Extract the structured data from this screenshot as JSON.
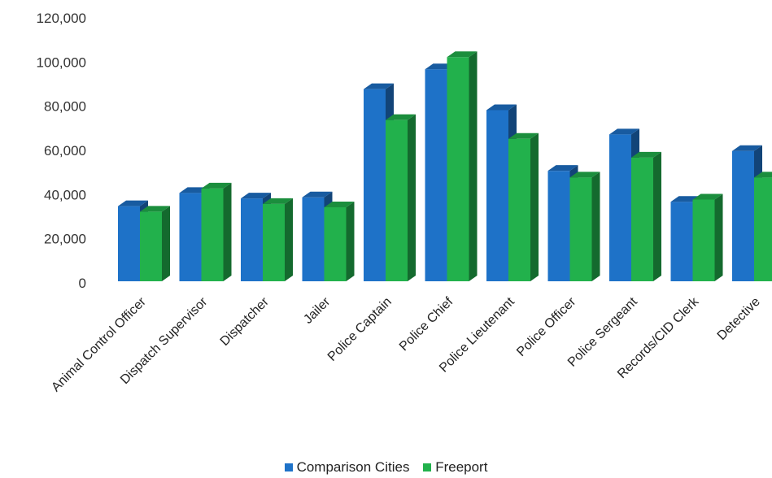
{
  "chart_data": {
    "type": "bar",
    "title": "",
    "xlabel": "",
    "ylabel": "",
    "ylim": [
      0,
      120000
    ],
    "yticks": [
      0,
      20000,
      40000,
      60000,
      80000,
      100000,
      120000
    ],
    "ytick_labels": [
      "0",
      "20,000",
      "40,000",
      "60,000",
      "80,000",
      "100,000",
      "120,000"
    ],
    "grid": false,
    "style": "3d-clustered-column",
    "legend_position": "bottom",
    "categories": [
      "Animal Control Officer",
      "Dispatch Supervisor",
      "Dispatcher",
      "Jailer",
      "Police Captain",
      "Police Chief",
      "Police Lieutenant",
      "Police Officer",
      "Police Sergeant",
      "Records/CID Clerk",
      "Detective"
    ],
    "series": [
      {
        "name": "Comparison Cities",
        "color": "#1e72c8",
        "values": [
          34000,
          40000,
          37500,
          38000,
          87000,
          96000,
          77500,
          50000,
          66500,
          36000,
          59000
        ]
      },
      {
        "name": "Freeport",
        "color": "#22b14c",
        "values": [
          31500,
          42000,
          35000,
          33500,
          73000,
          101500,
          64500,
          47000,
          56000,
          37000,
          47000
        ]
      }
    ]
  }
}
